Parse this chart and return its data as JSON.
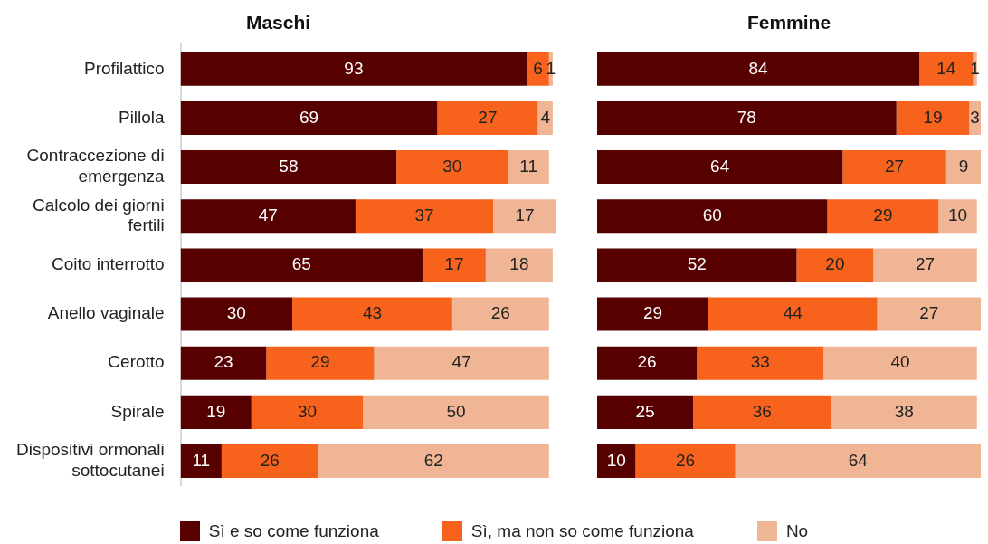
{
  "chart_data": [
    {
      "type": "bar",
      "title": "Maschi",
      "orientation": "horizontal",
      "stacked": true,
      "data_labels": true,
      "legend": "bottom",
      "tick_labels": "y",
      "grid": false,
      "categories": [
        "Profilattico",
        "Pillola",
        "Contraccezione di emergenza",
        "Calcolo dei giorni fertili",
        "Coito interrotto",
        "Anello vaginale",
        "Cerotto",
        "Spirale",
        "Dispositivi ormonali sottocutanei"
      ],
      "series": [
        {
          "name": "Sì e so come funziona",
          "color": "#560000",
          "values": [
            93,
            69,
            58,
            47,
            65,
            30,
            23,
            19,
            11
          ]
        },
        {
          "name": "Sì, ma non so come funziona",
          "color": "#f7621c",
          "values": [
            6,
            27,
            30,
            37,
            17,
            43,
            29,
            30,
            26
          ]
        },
        {
          "name": "No",
          "color": "#efb594",
          "values": [
            1,
            4,
            11,
            17,
            18,
            26,
            47,
            50,
            62
          ]
        }
      ]
    },
    {
      "type": "bar",
      "title": "Femmine",
      "orientation": "horizontal",
      "stacked": true,
      "data_labels": true,
      "tick_labels": false,
      "grid": false,
      "categories": [
        null,
        null,
        null,
        null,
        null,
        null,
        null,
        null,
        null
      ],
      "series": [
        {
          "color": "#560000",
          "values": [
            84,
            78,
            64,
            60,
            52,
            29,
            26,
            25,
            10
          ]
        },
        {
          "color": "#f7621c",
          "values": [
            14,
            19,
            27,
            29,
            20,
            44,
            33,
            36,
            26
          ]
        },
        {
          "color": "#efb594",
          "values": [
            1,
            3,
            9,
            10,
            27,
            27,
            40,
            38,
            64
          ]
        }
      ]
    }
  ]
}
